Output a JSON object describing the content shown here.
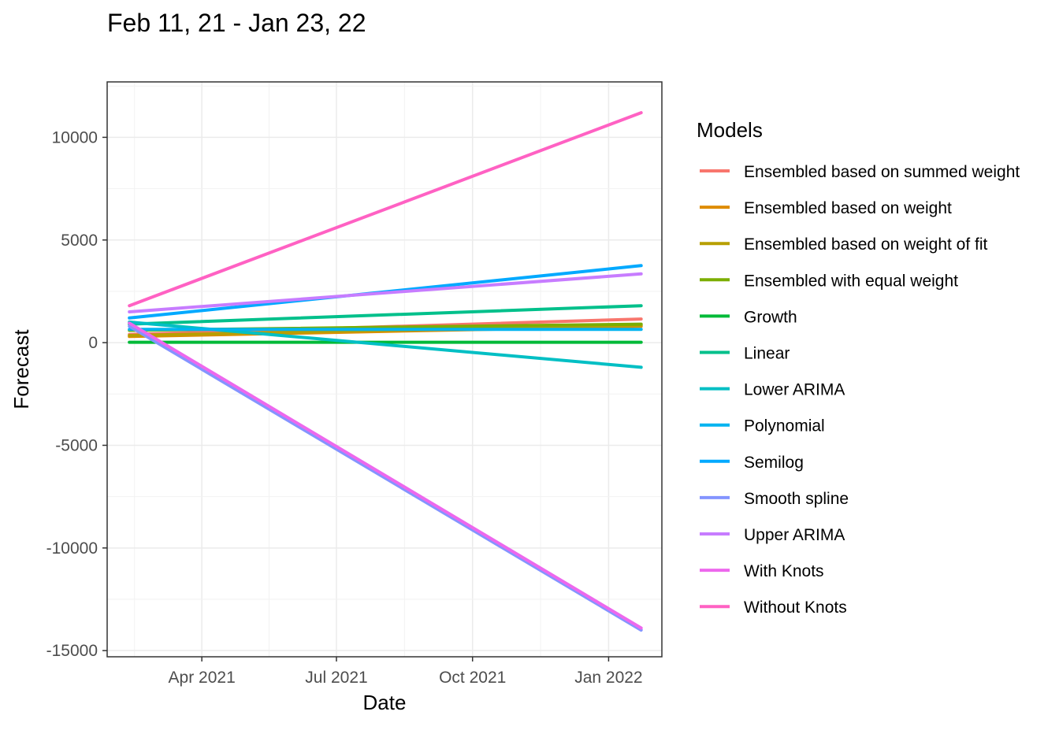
{
  "chart_data": {
    "type": "line",
    "title": "Feb 11, 21 - Jan 23, 22",
    "xlabel": "Date",
    "ylabel": "Forecast",
    "x_range": [
      "2021-02-11",
      "2022-01-23"
    ],
    "xlim": [
      "2021-01-27",
      "2022-02-06"
    ],
    "ylim": [
      -15300,
      12700
    ],
    "grid": true,
    "x_ticks": [
      {
        "date": "2021-04-01",
        "label": "Apr 2021"
      },
      {
        "date": "2021-07-01",
        "label": "Jul 2021"
      },
      {
        "date": "2021-10-01",
        "label": "Oct 2021"
      },
      {
        "date": "2022-01-01",
        "label": "Jan 2022"
      }
    ],
    "y_ticks": [
      {
        "value": 10000,
        "label": "10000"
      },
      {
        "value": 5000,
        "label": "5000"
      },
      {
        "value": 0,
        "label": "0"
      },
      {
        "value": -5000,
        "label": "-5000"
      },
      {
        "value": -10000,
        "label": "-10000"
      },
      {
        "value": -15000,
        "label": "-15000"
      }
    ],
    "legend": {
      "title": "Models",
      "position": "right"
    },
    "series": [
      {
        "name": "Ensembled based on summed weight",
        "color": "#F8766D",
        "values": [
          400,
          1150
        ]
      },
      {
        "name": "Ensembled based on weight",
        "color": "#DE8C00",
        "values": [
          300,
          800
        ]
      },
      {
        "name": "Ensembled based on weight of fit",
        "color": "#B79F00",
        "values": [
          350,
          850
        ]
      },
      {
        "name": "Ensembled with equal weight",
        "color": "#7CAE00",
        "values": [
          600,
          900
        ]
      },
      {
        "name": "Growth",
        "color": "#00BA38",
        "values": [
          20,
          20
        ]
      },
      {
        "name": "Linear",
        "color": "#00C08B",
        "values": [
          900,
          1800
        ]
      },
      {
        "name": "Lower ARIMA",
        "color": "#00BFC4",
        "values": [
          1000,
          -1200
        ]
      },
      {
        "name": "Polynomial",
        "color": "#00B4F0",
        "values": [
          650,
          650
        ]
      },
      {
        "name": "Semilog",
        "color": "#00A9FF",
        "values": [
          1200,
          3750
        ]
      },
      {
        "name": "Smooth spline",
        "color": "#8494FF",
        "values": [
          800,
          -14000
        ]
      },
      {
        "name": "Upper ARIMA",
        "color": "#C77CFF",
        "values": [
          1500,
          3350
        ]
      },
      {
        "name": "With Knots",
        "color": "#ED68ED",
        "values": [
          950,
          -13900
        ]
      },
      {
        "name": "Without Knots",
        "color": "#FF61C3",
        "values": [
          1800,
          11200
        ]
      }
    ]
  }
}
